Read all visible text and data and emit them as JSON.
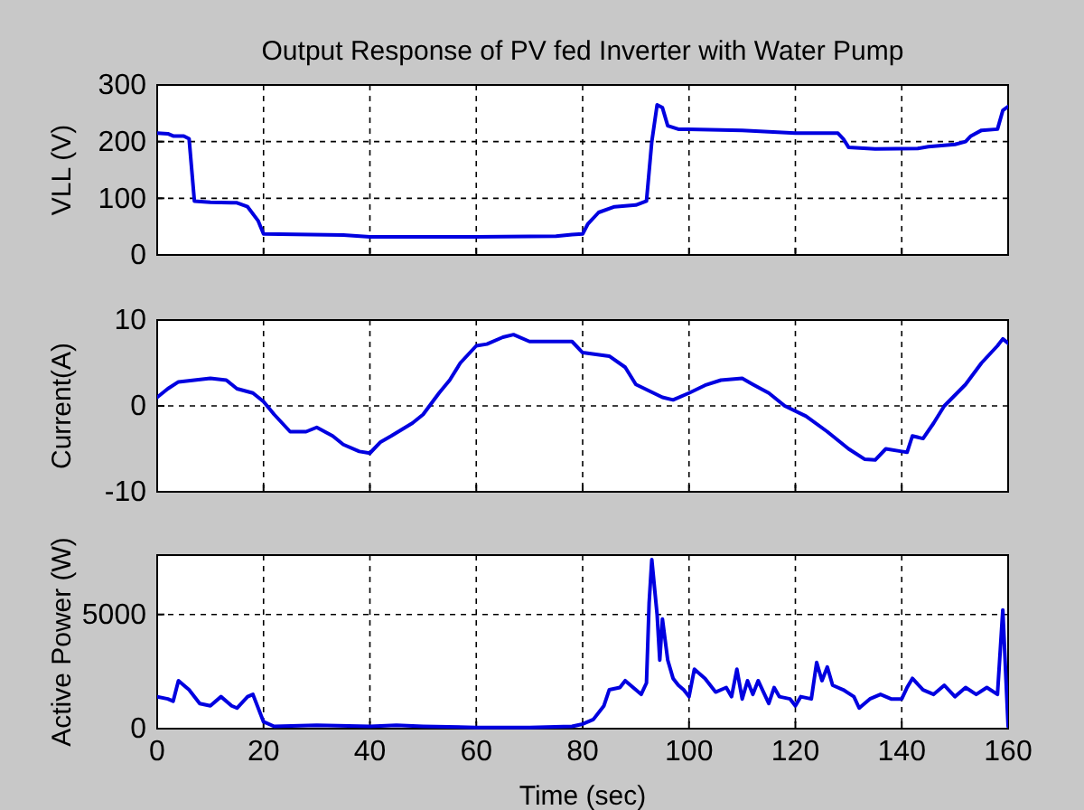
{
  "chart_data": [
    {
      "type": "line",
      "title": "Output Response of PV fed Inverter with Water Pump",
      "ylabel": "VLL (V)",
      "xlim": [
        0,
        160
      ],
      "xticks": [
        0,
        20,
        40,
        60,
        80,
        100,
        120,
        140,
        160
      ],
      "ylim": [
        0,
        300
      ],
      "yticks": [
        0,
        100,
        200,
        300
      ],
      "grid": true,
      "tick_labels": "y",
      "line_style": "solid",
      "series": [
        {
          "color": "#0000e0",
          "x": [
            0,
            2,
            3,
            5,
            6,
            7,
            10,
            15,
            17,
            19,
            20,
            35,
            40,
            60,
            75,
            78,
            80,
            81,
            83,
            86,
            90,
            92,
            93,
            94,
            95,
            96,
            98,
            110,
            120,
            128,
            129,
            130,
            135,
            143,
            145,
            150,
            152,
            153,
            155,
            158,
            159,
            160
          ],
          "values": [
            215,
            214,
            210,
            210,
            205,
            95,
            93,
            92,
            85,
            60,
            37,
            35,
            32,
            32,
            33,
            36,
            37,
            55,
            75,
            85,
            88,
            95,
            200,
            265,
            260,
            228,
            222,
            220,
            215,
            215,
            205,
            190,
            187,
            188,
            191,
            195,
            200,
            210,
            220,
            222,
            255,
            262
          ]
        }
      ]
    },
    {
      "type": "line",
      "ylabel": "Current(A)",
      "xlim": [
        0,
        160
      ],
      "xticks": [
        0,
        20,
        40,
        60,
        80,
        100,
        120,
        140,
        160
      ],
      "ylim": [
        -10,
        10
      ],
      "yticks": [
        -10,
        0,
        10
      ],
      "grid": true,
      "tick_labels": "y",
      "line_style": "solid",
      "series": [
        {
          "color": "#0000e0",
          "x": [
            0,
            2,
            4,
            7,
            10,
            13,
            15,
            18,
            20,
            22,
            25,
            28,
            30,
            33,
            35,
            38,
            40,
            42,
            44,
            48,
            50,
            53,
            55,
            57,
            60,
            62,
            65,
            67,
            70,
            75,
            78,
            80,
            85,
            88,
            90,
            95,
            97,
            100,
            103,
            106,
            110,
            112,
            115,
            118,
            122,
            126,
            130,
            133,
            135,
            137,
            140,
            141,
            142,
            144,
            146,
            148,
            152,
            155,
            158,
            159,
            160
          ],
          "values": [
            1,
            2,
            2.8,
            3,
            3.2,
            3,
            2,
            1.5,
            0.5,
            -1,
            -3,
            -3,
            -2.5,
            -3.5,
            -4.5,
            -5.3,
            -5.5,
            -4.2,
            -3.5,
            -2,
            -1,
            1.5,
            3,
            5,
            7,
            7.2,
            8,
            8.3,
            7.5,
            7.5,
            7.5,
            6.2,
            5.8,
            4.5,
            2.5,
            1,
            0.7,
            1.5,
            2.4,
            3,
            3.2,
            2.5,
            1.5,
            0,
            -1.2,
            -3,
            -5,
            -6.2,
            -6.3,
            -5,
            -5.3,
            -5.4,
            -3.5,
            -3.8,
            -2,
            0,
            2.5,
            5,
            7,
            7.8,
            7.3
          ]
        }
      ]
    },
    {
      "type": "line",
      "xlabel": "Time (sec)",
      "ylabel": "Active Power (W)",
      "xlim": [
        0,
        160
      ],
      "xticks": [
        0,
        20,
        40,
        60,
        80,
        100,
        120,
        140,
        160
      ],
      "ylim": [
        0,
        7600
      ],
      "yticks": [
        0,
        5000
      ],
      "grid": true,
      "line_style": "solid",
      "series": [
        {
          "color": "#0000e0",
          "x": [
            0,
            2,
            3,
            4,
            6,
            8,
            10,
            12,
            14,
            15,
            17,
            18,
            20,
            22,
            30,
            40,
            45,
            50,
            60,
            70,
            78,
            80,
            82,
            84,
            85,
            87,
            88,
            90,
            91,
            92,
            92.5,
            93,
            94,
            94.5,
            95,
            96,
            97,
            98,
            99,
            100,
            101,
            103,
            105,
            107,
            108,
            109,
            110,
            111,
            112,
            113,
            114,
            115,
            116,
            117,
            119,
            120,
            121,
            123,
            124,
            125,
            126,
            127,
            129,
            131,
            132,
            134,
            136,
            138,
            140,
            141,
            142,
            144,
            146,
            148,
            150,
            152,
            154,
            156,
            158,
            159,
            160
          ],
          "values": [
            1400,
            1300,
            1200,
            2100,
            1700,
            1100,
            1000,
            1400,
            1000,
            900,
            1400,
            1500,
            300,
            100,
            150,
            100,
            150,
            100,
            50,
            50,
            100,
            200,
            400,
            1000,
            1700,
            1800,
            2100,
            1700,
            1500,
            2000,
            5500,
            7400,
            5000,
            3000,
            4800,
            3000,
            2200,
            1900,
            1700,
            1400,
            2600,
            2200,
            1600,
            1800,
            1400,
            2600,
            1300,
            2100,
            1500,
            2100,
            1600,
            1100,
            1800,
            1400,
            1300,
            1000,
            1400,
            1300,
            2900,
            2100,
            2700,
            1900,
            1700,
            1400,
            900,
            1300,
            1500,
            1300,
            1300,
            1800,
            2200,
            1700,
            1500,
            1900,
            1400,
            1800,
            1500,
            1800,
            1500,
            5200,
            100
          ]
        }
      ]
    }
  ]
}
